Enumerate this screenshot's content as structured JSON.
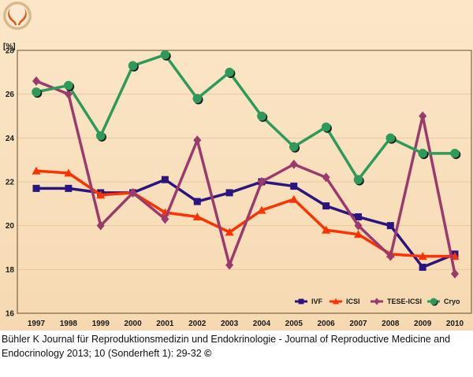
{
  "logo": {
    "name": "journal-logo",
    "colors": {
      "ring": "#d9b98c",
      "mark": "#e05a1a"
    }
  },
  "caption": {
    "line1": "Bühler K Journal für Reproduktionsmedizin und Endokrinologie - Journal of Reproductive Medicine and",
    "line2": "Endocrinology 2013; 10 (Sonderheft 1): 29-32 ",
    "copyright": "©"
  },
  "chart_data": {
    "type": "line",
    "title": "",
    "xlabel": "",
    "ylabel": "[%]",
    "ylim": [
      16,
      28
    ],
    "yticks": [
      16,
      18,
      20,
      22,
      24,
      26,
      28
    ],
    "grid": true,
    "legend_position": "bottom-right",
    "background": "#f8dfbe",
    "categories": [
      "1997",
      "1998",
      "1999",
      "2000",
      "2001",
      "2002",
      "2003",
      "2004",
      "2005",
      "2006",
      "2007",
      "2008",
      "2009",
      "2010"
    ],
    "series": [
      {
        "name": "IVF",
        "color": "#2a1480",
        "marker": "square",
        "values": [
          21.7,
          21.7,
          21.5,
          21.5,
          22.1,
          21.1,
          21.5,
          22.0,
          21.8,
          20.9,
          20.4,
          20.0,
          18.1,
          18.7
        ]
      },
      {
        "name": "ICSI",
        "color": "#ff3300",
        "marker": "triangle",
        "values": [
          22.5,
          22.4,
          21.4,
          21.5,
          20.6,
          20.4,
          19.7,
          20.7,
          21.2,
          19.8,
          19.6,
          18.7,
          18.6,
          18.6
        ]
      },
      {
        "name": "TESE-ICSI",
        "color": "#9b3a6c",
        "marker": "diamond",
        "values": [
          26.6,
          26.0,
          20.0,
          21.5,
          20.3,
          23.9,
          18.2,
          22.0,
          22.8,
          22.2,
          20.0,
          18.6,
          25.0,
          17.8
        ]
      },
      {
        "name": "Cryo",
        "color": "#2e9a5a",
        "marker": "circle",
        "values": [
          26.1,
          26.4,
          24.1,
          27.3,
          27.8,
          25.8,
          27.0,
          25.0,
          23.6,
          24.5,
          22.1,
          24.0,
          23.3,
          23.3
        ]
      }
    ]
  }
}
